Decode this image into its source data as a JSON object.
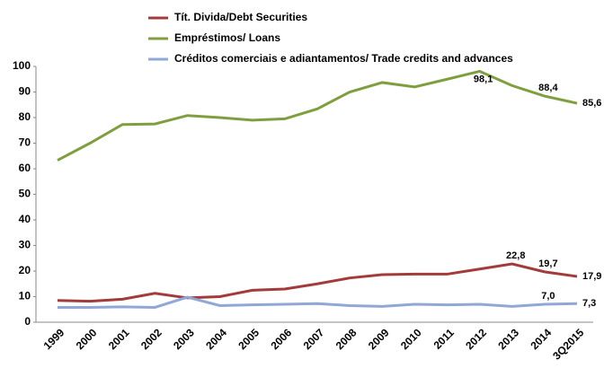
{
  "chart_data": {
    "type": "line",
    "categories": [
      "1999",
      "2000",
      "2001",
      "2002",
      "2003",
      "2004",
      "2005",
      "2006",
      "2007",
      "2008",
      "2009",
      "2010",
      "2011",
      "2012",
      "2013",
      "2014",
      "3Q2015"
    ],
    "series": [
      {
        "name": "Tít. Divida/Debt Securities",
        "color": "#a33b3b",
        "values": [
          8.5,
          8.2,
          9,
          11.3,
          9.5,
          10,
          12.5,
          13,
          15,
          17.3,
          18.6,
          18.8,
          18.8,
          20.8,
          22.8,
          19.7,
          17.9
        ],
        "value_labels": [
          null,
          null,
          null,
          null,
          null,
          null,
          null,
          null,
          null,
          null,
          null,
          null,
          null,
          null,
          "22,8",
          "19,7",
          "17,9"
        ]
      },
      {
        "name": "Empréstimos/ Loans",
        "color": "#7f9f3f",
        "values": [
          63.3,
          70,
          77.3,
          77.5,
          80.8,
          80,
          79,
          79.5,
          83.4,
          90,
          93.7,
          92,
          95,
          98.1,
          92.5,
          88.4,
          85.6
        ],
        "value_labels": [
          null,
          null,
          null,
          null,
          null,
          null,
          null,
          null,
          null,
          null,
          null,
          null,
          null,
          "98,1",
          null,
          "88,4",
          "85,6"
        ]
      },
      {
        "name": "Créditos comerciais e adiantamentos/ Trade credits and advances",
        "color": "#8fa8d6",
        "values": [
          5.8,
          5.8,
          6,
          5.8,
          9.8,
          6.5,
          6.8,
          7,
          7.3,
          6.5,
          6.2,
          7,
          6.8,
          7,
          6.2,
          7.0,
          7.3
        ],
        "value_labels": [
          null,
          null,
          null,
          null,
          null,
          null,
          null,
          null,
          null,
          null,
          null,
          null,
          null,
          null,
          null,
          "7,0",
          "7,3"
        ]
      }
    ],
    "ylim": [
      0,
      100
    ],
    "yticks": [
      0,
      10,
      20,
      30,
      40,
      50,
      60,
      70,
      80,
      90,
      100
    ],
    "grid": false
  }
}
